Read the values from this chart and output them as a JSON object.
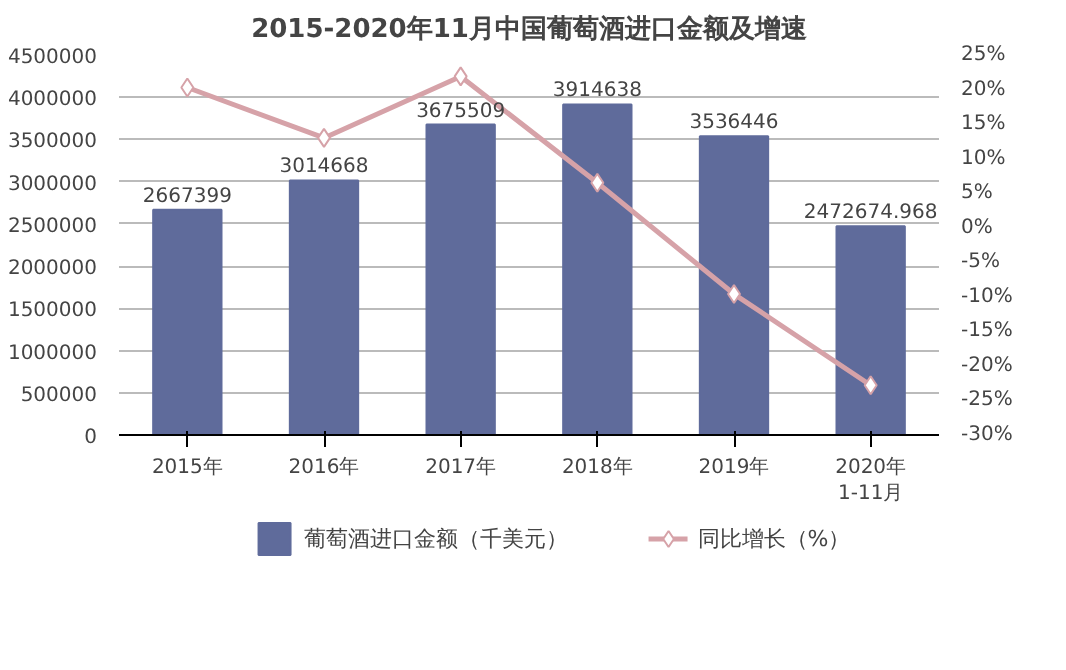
{
  "chart_data": {
    "type": "bar",
    "title": "2015-2020年11月中国葡萄酒进口金额及增速",
    "categories": [
      "2015年",
      "2016年",
      "2017年",
      "2018年",
      "2019年",
      "2020年\n1-11月"
    ],
    "series": [
      {
        "name": "葡萄酒进口金额（千美元）",
        "color": "#5f6b9b",
        "values": [
          2667399,
          3014668,
          3675509,
          3914638,
          3536446,
          2472674.968
        ],
        "value_labels": [
          "2667399",
          "3014668",
          "3675509",
          "3914638",
          "3536446",
          "2472674.968"
        ]
      },
      {
        "name": "同比增长（%）",
        "type": "line",
        "axis": "y2",
        "color": "#d6a2a8",
        "marker": "diamond",
        "values": [
          20.3,
          13.0,
          21.9,
          6.5,
          -9.6,
          -22.8
        ]
      }
    ],
    "ylim": [
      0,
      4500000
    ],
    "yticks": [
      0,
      500000,
      1000000,
      1500000,
      2000000,
      2500000,
      3000000,
      3500000,
      4000000,
      4500000
    ],
    "y2lim": [
      -30,
      25
    ],
    "y2ticks": [
      {
        "value": -30,
        "label": "-30%"
      },
      {
        "value": -25,
        "label": "-25%"
      },
      {
        "value": -20,
        "label": "-20%"
      },
      {
        "value": -15,
        "label": "-15%"
      },
      {
        "value": -10,
        "label": "-10%"
      },
      {
        "value": -5,
        "label": "-5%"
      },
      {
        "value": 0,
        "label": "0%"
      },
      {
        "value": 5,
        "label": "5%"
      },
      {
        "value": 10,
        "label": "10%"
      },
      {
        "value": 15,
        "label": "15%"
      },
      {
        "value": 20,
        "label": "20%"
      },
      {
        "value": 25,
        "label": "25%"
      }
    ],
    "grid": "y",
    "legend": "bottom"
  }
}
